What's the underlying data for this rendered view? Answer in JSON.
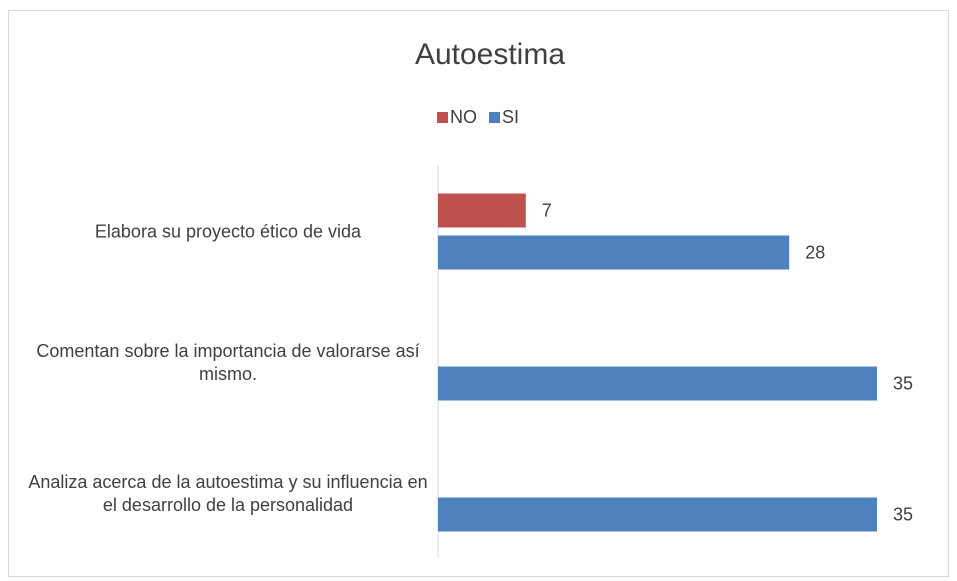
{
  "chart_data": {
    "type": "bar",
    "orientation": "horizontal",
    "title": "Autoestima",
    "categories": [
      "Elabora su proyecto ético de vida",
      "Comentan sobre la importancia de valorarse así mismo.",
      "Analiza acerca de la autoestima y su influencia en el desarrollo de la personalidad"
    ],
    "series": [
      {
        "name": "NO",
        "color": "#c0504d",
        "values": [
          7,
          null,
          null
        ]
      },
      {
        "name": "SI",
        "color": "#4f81bd",
        "values": [
          28,
          35,
          35
        ]
      }
    ],
    "legend": "top"
  }
}
